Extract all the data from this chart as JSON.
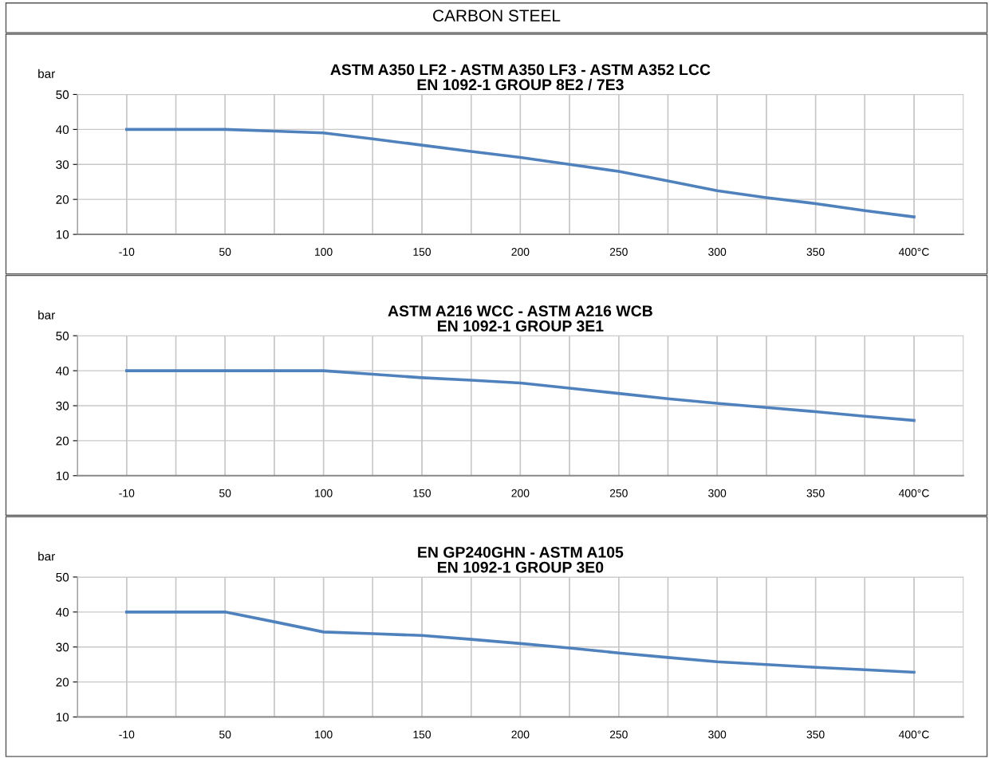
{
  "chart_data": [
    {
      "type": "line",
      "title": "ASTM A350 LF2 - ASTM A350 LF3 - ASTM A352 LCC\nEN 1092-1 GROUP 8E2 / 7E3",
      "ylabel": "bar",
      "annotations": [
        "CARBON STEEL"
      ],
      "categories": [
        "-10",
        null,
        "50",
        null,
        "100",
        null,
        "150",
        null,
        "200",
        null,
        "250",
        null,
        "300",
        null,
        "350",
        null,
        "400°C"
      ],
      "series": [
        {
          "color": "#4f81bd",
          "values": [
            40,
            40,
            40,
            39.5,
            39,
            37.3,
            35.5,
            33.7,
            32,
            30,
            28,
            25.3,
            22.5,
            20.5,
            18.8,
            16.8,
            15
          ]
        }
      ],
      "ylim": [
        10,
        50
      ],
      "yticks": [
        10,
        20,
        30,
        40,
        50
      ],
      "grid": true,
      "marker": "none",
      "line_style": "solid"
    },
    {
      "type": "line",
      "title": "ASTM A216 WCC - ASTM A216 WCB\nEN 1092-1 GROUP 3E1",
      "ylabel": "bar",
      "categories": [
        "-10",
        null,
        "50",
        null,
        "100",
        null,
        "150",
        null,
        "200",
        null,
        "250",
        null,
        "300",
        null,
        "350",
        null,
        "400°C"
      ],
      "series": [
        {
          "color": "#4f81bd",
          "values": [
            40,
            40,
            40,
            40,
            40,
            39,
            38,
            37.3,
            36.5,
            35,
            33.5,
            32,
            30.7,
            29.5,
            28.3,
            27,
            25.8
          ]
        }
      ],
      "ylim": [
        10,
        50
      ],
      "yticks": [
        10,
        20,
        30,
        40,
        50
      ],
      "grid": true,
      "marker": "none",
      "line_style": "solid"
    },
    {
      "type": "line",
      "title": "EN GP240GHN - ASTM A105\nEN 1092-1 GROUP 3E0",
      "ylabel": "bar",
      "categories": [
        "-10",
        null,
        "50",
        null,
        "100",
        null,
        "150",
        null,
        "200",
        null,
        "250",
        null,
        "300",
        null,
        "350",
        null,
        "400°C"
      ],
      "series": [
        {
          "color": "#4f81bd",
          "values": [
            40,
            40,
            40,
            37.2,
            34.3,
            33.8,
            33.3,
            32.2,
            31,
            29.7,
            28.3,
            27,
            25.8,
            25,
            24.2,
            23.5,
            22.8
          ]
        }
      ],
      "ylim": [
        10,
        50
      ],
      "yticks": [
        10,
        20,
        30,
        40,
        50
      ],
      "grid": true,
      "marker": "none",
      "line_style": "solid"
    }
  ]
}
